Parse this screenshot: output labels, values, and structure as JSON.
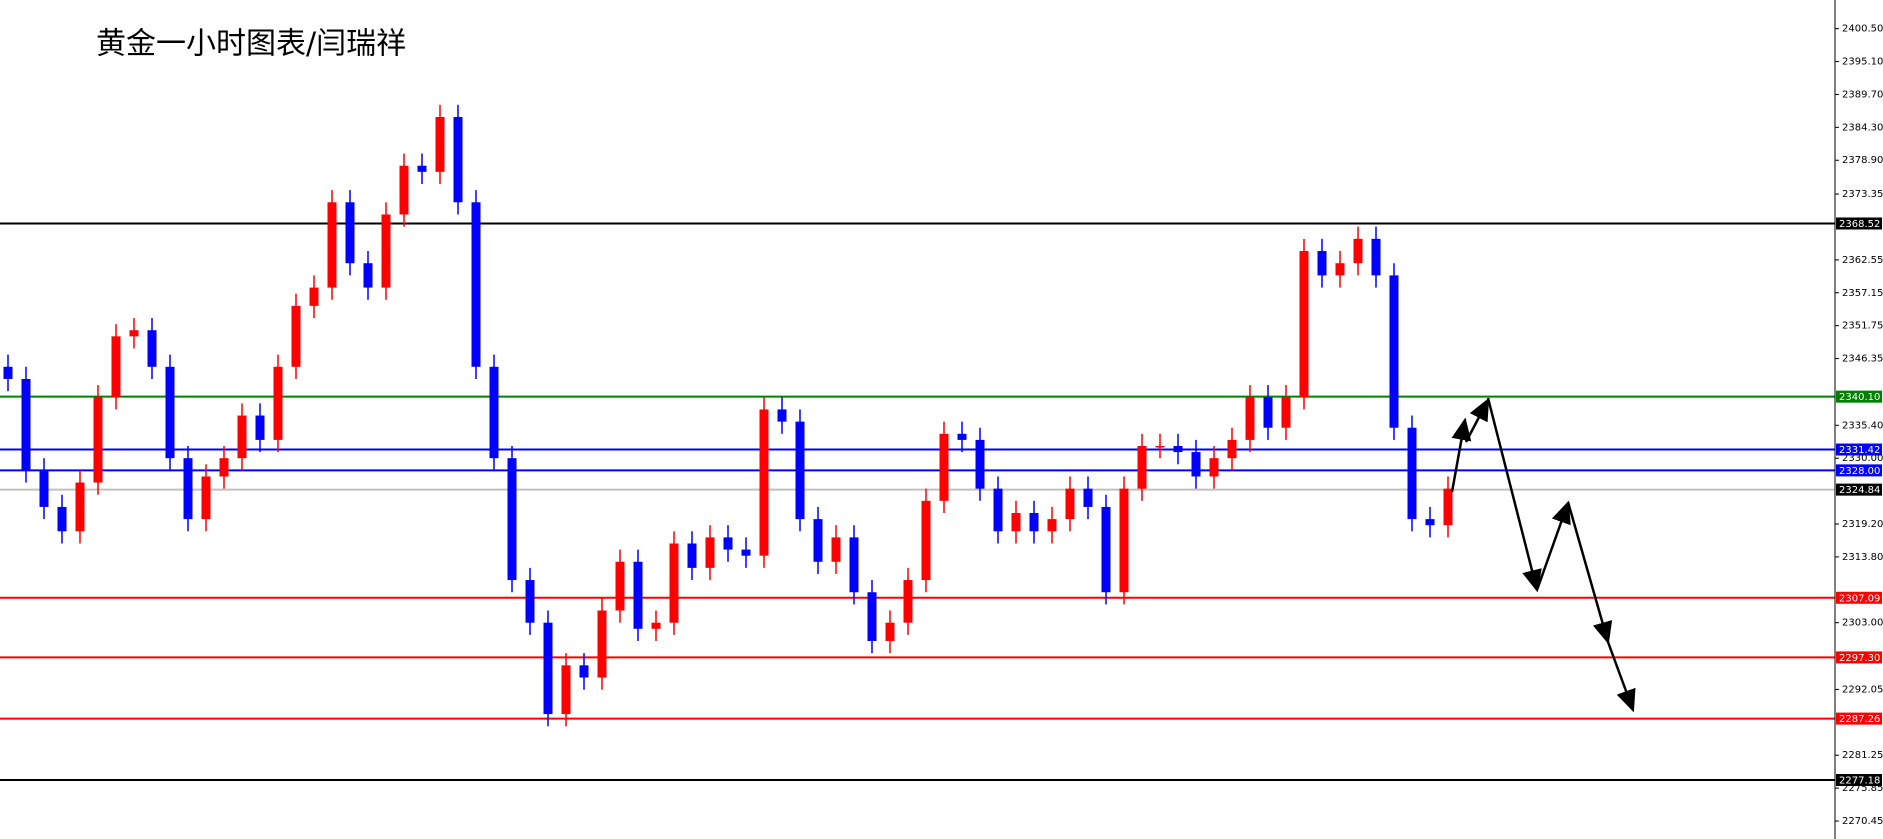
{
  "chart_data": {
    "type": "candlestick",
    "title": "黄金一小时图表/闫瑞祥",
    "up_color": "#ff0000",
    "down_color": "#0000ff",
    "ylim": [
      2267.5,
      2405.2
    ],
    "yticks": [
      {
        "value": 2400.5,
        "label": "2400.50"
      },
      {
        "value": 2395.1,
        "label": "2395.10"
      },
      {
        "value": 2389.7,
        "label": "2389.70"
      },
      {
        "value": 2384.3,
        "label": "2384.30"
      },
      {
        "value": 2378.9,
        "label": "2378.90"
      },
      {
        "value": 2373.35,
        "label": "2373.35"
      },
      {
        "value": 2362.55,
        "label": "2362.55"
      },
      {
        "value": 2357.15,
        "label": "2357.15"
      },
      {
        "value": 2351.75,
        "label": "2351.75"
      },
      {
        "value": 2346.35,
        "label": "2346.35"
      },
      {
        "value": 2335.4,
        "label": "2335.40"
      },
      {
        "value": 2330,
        "label": "2330.00"
      },
      {
        "value": 2319.2,
        "label": "2319.20"
      },
      {
        "value": 2313.8,
        "label": "2313.80"
      },
      {
        "value": 2303,
        "label": "2303.00"
      },
      {
        "value": 2292.05,
        "label": "2292.05"
      },
      {
        "value": 2281.25,
        "label": "2281.25"
      },
      {
        "value": 2275.85,
        "label": "2275.85"
      },
      {
        "value": 2270.45,
        "label": "2270.45"
      }
    ],
    "levels": [
      {
        "value": 2368.52,
        "label": "2368.52",
        "color": "#000000",
        "label_color": "#000000"
      },
      {
        "value": 2340.1,
        "label": "2340.10",
        "color": "#008000",
        "label_color": "#008000"
      },
      {
        "value": 2331.42,
        "label": "2331.42",
        "color": "#0000ff",
        "label_color": "#0000ff"
      },
      {
        "value": 2328,
        "label": "2328.00",
        "color": "#0000ff",
        "label_color": "#0000ff"
      },
      {
        "value": 2324.84,
        "label": "2324.84",
        "color": "#c0c0c0",
        "label_color": "#000000"
      },
      {
        "value": 2307.09,
        "label": "2307.09",
        "color": "#ff0000",
        "label_color": "#ff0000"
      },
      {
        "value": 2297.3,
        "label": "2297.30",
        "color": "#ff0000",
        "label_color": "#ff0000"
      },
      {
        "value": 2287.26,
        "label": "2287.26",
        "color": "#ff0000",
        "label_color": "#ff0000"
      },
      {
        "value": 2277.18,
        "label": "2277.18",
        "color": "#000000",
        "label_color": "#000000"
      }
    ],
    "open": [
      2345,
      2343,
      2328,
      2322,
      2318,
      2326,
      2340,
      2350,
      2351,
      2345,
      2330,
      2320,
      2327,
      2330,
      2337,
      2333,
      2345,
      2355,
      2358,
      2372,
      2362,
      2358,
      2370,
      2378,
      2377,
      2386,
      2372,
      2345,
      2330,
      2310,
      2303,
      2288,
      2296,
      2294,
      2305,
      2313,
      2302,
      2303,
      2316,
      2312,
      2317,
      2315,
      2314,
      2338,
      2336,
      2320,
      2313,
      2317,
      2308,
      2300,
      2303,
      2310,
      2323,
      2334,
      2333,
      2325,
      2318,
      2321,
      2318,
      2320,
      2325,
      2322,
      2308,
      2325,
      2332,
      2332,
      2331,
      2327,
      2330,
      2333,
      2340,
      2335,
      2340,
      2364,
      2360,
      2362,
      2366,
      2360,
      2335,
      2320,
      2319
    ],
    "high": [
      2347,
      2345,
      2330,
      2324,
      2328,
      2342,
      2352,
      2353,
      2353,
      2347,
      2332,
      2329,
      2332,
      2339,
      2339,
      2347,
      2357,
      2360,
      2374,
      2374,
      2364,
      2372,
      2380,
      2380,
      2388,
      2388,
      2374,
      2347,
      2332,
      2312,
      2305,
      2298,
      2298,
      2307,
      2315,
      2315,
      2305,
      2318,
      2318,
      2319,
      2319,
      2317,
      2340,
      2340,
      2338,
      2322,
      2319,
      2319,
      2310,
      2305,
      2312,
      2325,
      2336,
      2336,
      2335,
      2327,
      2323,
      2323,
      2322,
      2327,
      2327,
      2324,
      2327,
      2334,
      2334,
      2334,
      2333,
      2332,
      2335,
      2342,
      2342,
      2342,
      2366,
      2366,
      2364,
      2368,
      2368,
      2362,
      2337,
      2322,
      2327
    ],
    "low": [
      2341,
      2326,
      2320,
      2316,
      2316,
      2324,
      2338,
      2348,
      2343,
      2328,
      2318,
      2318,
      2325,
      2328,
      2331,
      2331,
      2343,
      2353,
      2356,
      2360,
      2356,
      2356,
      2368,
      2375,
      2375,
      2370,
      2343,
      2328,
      2308,
      2301,
      2286,
      2286,
      2292,
      2292,
      2303,
      2300,
      2300,
      2301,
      2310,
      2310,
      2313,
      2312,
      2312,
      2334,
      2318,
      2311,
      2311,
      2306,
      2298,
      2298,
      2301,
      2308,
      2321,
      2331,
      2323,
      2316,
      2316,
      2316,
      2316,
      2318,
      2320,
      2306,
      2306,
      2323,
      2330,
      2329,
      2325,
      2325,
      2328,
      2331,
      2333,
      2333,
      2338,
      2358,
      2358,
      2360,
      2358,
      2333,
      2318,
      2317,
      2317
    ],
    "close": [
      2343,
      2328,
      2322,
      2318,
      2326,
      2340,
      2350,
      2351,
      2345,
      2330,
      2320,
      2327,
      2330,
      2337,
      2333,
      2345,
      2355,
      2358,
      2372,
      2362,
      2358,
      2370,
      2378,
      2377,
      2386,
      2372,
      2345,
      2330,
      2310,
      2303,
      2288,
      2296,
      2294,
      2305,
      2313,
      2302,
      2303,
      2316,
      2312,
      2317,
      2315,
      2314,
      2338,
      2336,
      2320,
      2313,
      2317,
      2308,
      2300,
      2303,
      2310,
      2323,
      2334,
      2333,
      2325,
      2318,
      2321,
      2318,
      2320,
      2325,
      2322,
      2308,
      2325,
      2332,
      2332,
      2331,
      2327,
      2330,
      2333,
      2340,
      2335,
      2340,
      2364,
      2360,
      2362,
      2366,
      2360,
      2335,
      2320,
      2319,
      2325
    ]
  }
}
